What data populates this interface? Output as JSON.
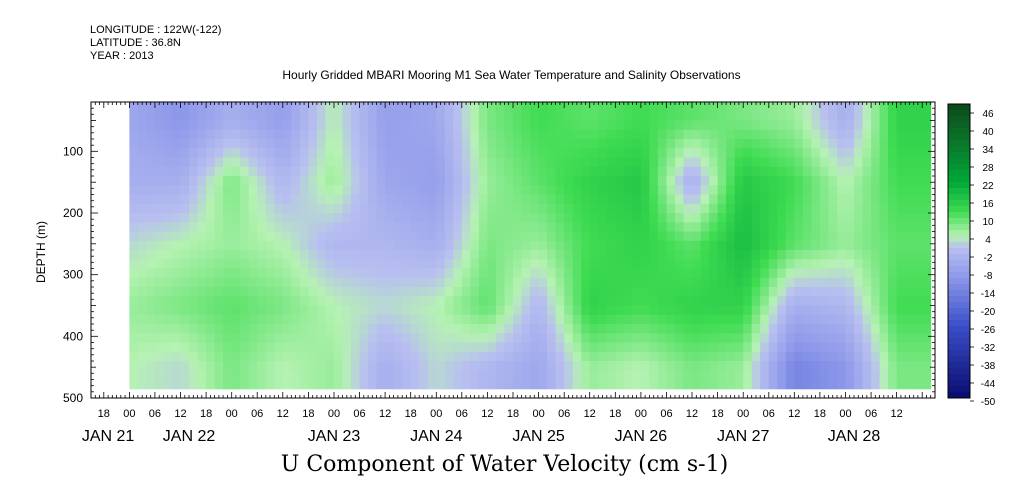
{
  "header": {
    "longitude": "LONGITUDE : 122W(-122)",
    "latitude": "LATITUDE : 36.8N",
    "year": "YEAR : 2013"
  },
  "title": "Hourly Gridded MBARI Mooring M1 Sea Water Temperature and Salinity Observations",
  "caption": "U Component of Water Velocity (cm s-1)",
  "chart_data": {
    "type": "heatmap",
    "title": "Hourly Gridded MBARI Mooring M1 Sea Water Temperature and Salinity Observations",
    "xlabel": "",
    "ylabel": "DEPTH (m)",
    "colorbar_label": "U Component of Water Velocity (cm s-1)",
    "y_range": [
      500,
      20
    ],
    "y_ticks": [
      100,
      200,
      300,
      400,
      500
    ],
    "y_reversed": true,
    "x_range_hours": [
      -9,
      189
    ],
    "hour_ticks": [
      "18",
      "00",
      "06",
      "12",
      "18",
      "00",
      "06",
      "12",
      "18",
      "00",
      "06",
      "12",
      "18",
      "00",
      "06",
      "12",
      "18",
      "00",
      "06",
      "12",
      "18",
      "00",
      "06",
      "12",
      "18",
      "00",
      "06",
      "12",
      "18",
      "00",
      "06",
      "12"
    ],
    "day_labels": [
      "JAN 21",
      "JAN 22",
      "JAN 23",
      "JAN 24",
      "JAN 25",
      "JAN 26",
      "JAN 27",
      "JAN 28"
    ],
    "data_x_start_hours": 0,
    "colorbar_levels": [
      48,
      46,
      44,
      42,
      40,
      38,
      36,
      34,
      32,
      30,
      28,
      26,
      24,
      22,
      20,
      18,
      16,
      14,
      12,
      10,
      8,
      6,
      4,
      2,
      0,
      -2,
      -4,
      -6,
      -8,
      -10,
      -12,
      -14,
      -16,
      -18,
      -20,
      -22,
      -24,
      -26,
      -28,
      -30,
      -32,
      -34,
      -36,
      -38,
      -40,
      -42,
      -44,
      -46,
      -48,
      -50
    ],
    "colorbar_tick_labels": [
      "46",
      "40",
      "34",
      "28",
      "22",
      "16",
      "10",
      "4",
      "-2",
      "-8",
      "-14",
      "-20",
      "-26",
      "-32",
      "-38",
      "-44",
      "-50"
    ],
    "colorbar_colors": {
      "max": "#0c4a1c",
      "strong_positive": "#00a838",
      "mid_positive": "#3fdc52",
      "weak_positive": "#b6f2b3",
      "near_zero": "#b8bff0",
      "weak_negative": "#8c97ea",
      "mid_negative": "#3a4fc8",
      "min": "#0a0a6e"
    },
    "field_description": "Mostly weak positive values (light green, ~4 to 16 cm/s) with patches of weak negative values (light blue, ~-2 to -14 cm/s), stronger negative patches near 400-480 m around JAN 27 and stronger positive bands around JAN 25-27",
    "profiles": [
      {
        "hour": 0,
        "values_by_depth": {
          "50": -6,
          "150": -4,
          "250": 2,
          "350": 6,
          "450": 4
        }
      },
      {
        "hour": 12,
        "values_by_depth": {
          "50": -10,
          "150": -4,
          "250": 4,
          "350": 8,
          "450": 2
        }
      },
      {
        "hour": 24,
        "values_by_depth": {
          "50": -4,
          "150": 8,
          "250": 6,
          "350": 10,
          "450": 8
        }
      },
      {
        "hour": 36,
        "values_by_depth": {
          "50": -8,
          "150": -2,
          "250": 4,
          "350": 8,
          "450": 4
        }
      },
      {
        "hour": 48,
        "values_by_depth": {
          "50": 4,
          "150": 6,
          "250": -2,
          "350": 4,
          "450": 6
        }
      },
      {
        "hour": 60,
        "values_by_depth": {
          "50": -8,
          "150": -6,
          "250": -2,
          "350": 2,
          "450": -4
        }
      },
      {
        "hour": 72,
        "values_by_depth": {
          "50": -6,
          "150": -8,
          "250": -4,
          "350": 4,
          "450": 2
        }
      },
      {
        "hour": 84,
        "values_by_depth": {
          "50": 8,
          "150": 6,
          "250": 8,
          "350": 10,
          "450": -2
        }
      },
      {
        "hour": 96,
        "values_by_depth": {
          "50": 12,
          "150": 10,
          "250": 6,
          "350": -2,
          "450": -6
        }
      },
      {
        "hour": 108,
        "values_by_depth": {
          "50": 10,
          "150": 14,
          "250": 12,
          "350": 14,
          "450": 6
        }
      },
      {
        "hour": 120,
        "values_by_depth": {
          "50": 12,
          "150": 16,
          "250": 14,
          "350": 12,
          "450": 4
        }
      },
      {
        "hour": 132,
        "values_by_depth": {
          "50": 10,
          "150": -4,
          "250": 10,
          "350": 14,
          "450": 8
        }
      },
      {
        "hour": 144,
        "values_by_depth": {
          "50": 8,
          "150": 16,
          "250": 18,
          "350": 14,
          "450": 6
        }
      },
      {
        "hour": 156,
        "values_by_depth": {
          "50": 6,
          "150": 12,
          "250": 10,
          "350": -4,
          "450": -14
        }
      },
      {
        "hour": 168,
        "values_by_depth": {
          "50": -4,
          "150": 4,
          "250": 6,
          "350": -2,
          "450": -10
        }
      },
      {
        "hour": 180,
        "values_by_depth": {
          "50": 14,
          "150": 12,
          "250": 10,
          "350": 12,
          "450": 8
        }
      }
    ]
  }
}
